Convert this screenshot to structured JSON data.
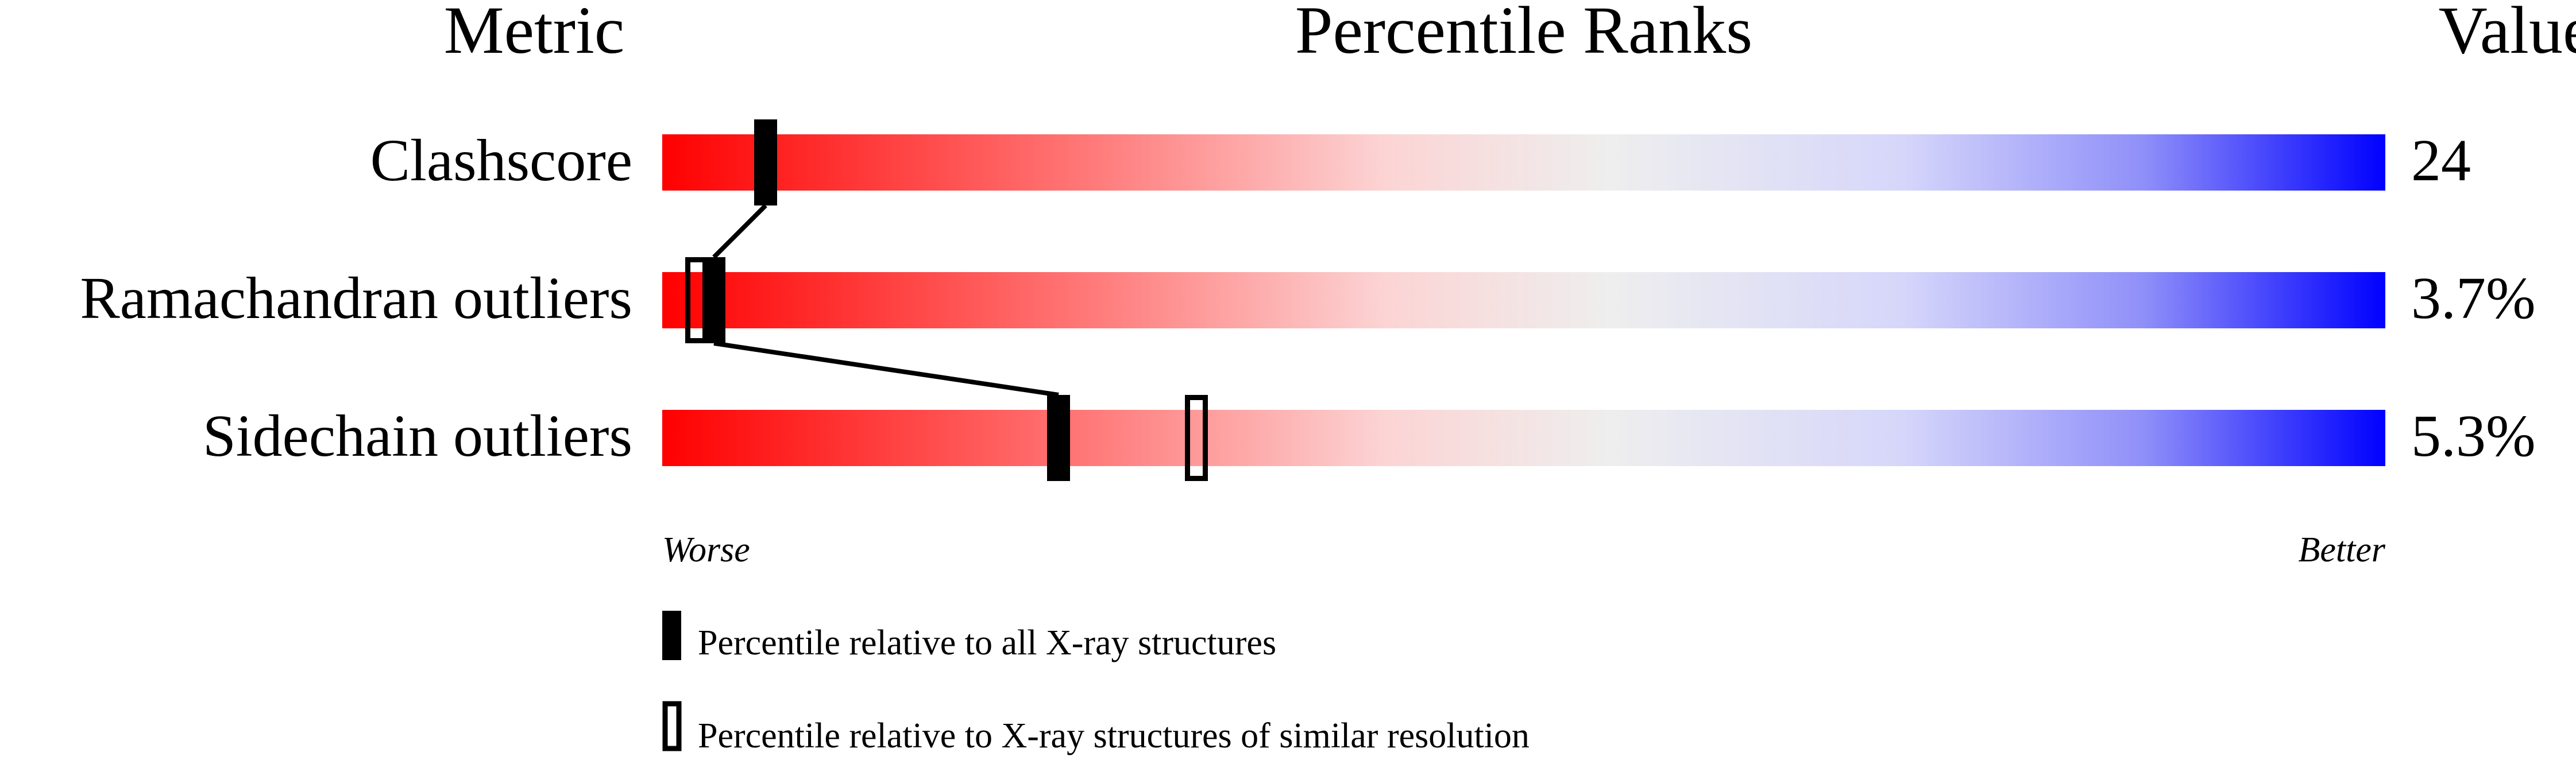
{
  "chart_data": {
    "type": "percentile-bar",
    "headers": {
      "metric": "Metric",
      "ranks": "Percentile Ranks",
      "value": "Value"
    },
    "xlim": [
      0,
      100
    ],
    "axis_labels": {
      "left": "Worse",
      "right": "Better"
    },
    "gradient_colors": [
      "#ff0000",
      "#eeeeee",
      "#0000ff"
    ],
    "rows": [
      {
        "metric": "Clashscore",
        "value": "24",
        "percentile_all": 6,
        "percentile_similar": 6
      },
      {
        "metric": "Ramachandran outliers",
        "value": "3.7%",
        "percentile_all": 3,
        "percentile_similar": 2
      },
      {
        "metric": "Sidechain outliers",
        "value": "5.3%",
        "percentile_all": 23,
        "percentile_similar": 31
      }
    ],
    "legend": [
      {
        "marker": "filled",
        "label": "Percentile relative to all X-ray structures"
      },
      {
        "marker": "hollow",
        "label": "Percentile relative to X-ray structures of similar resolution"
      }
    ]
  }
}
